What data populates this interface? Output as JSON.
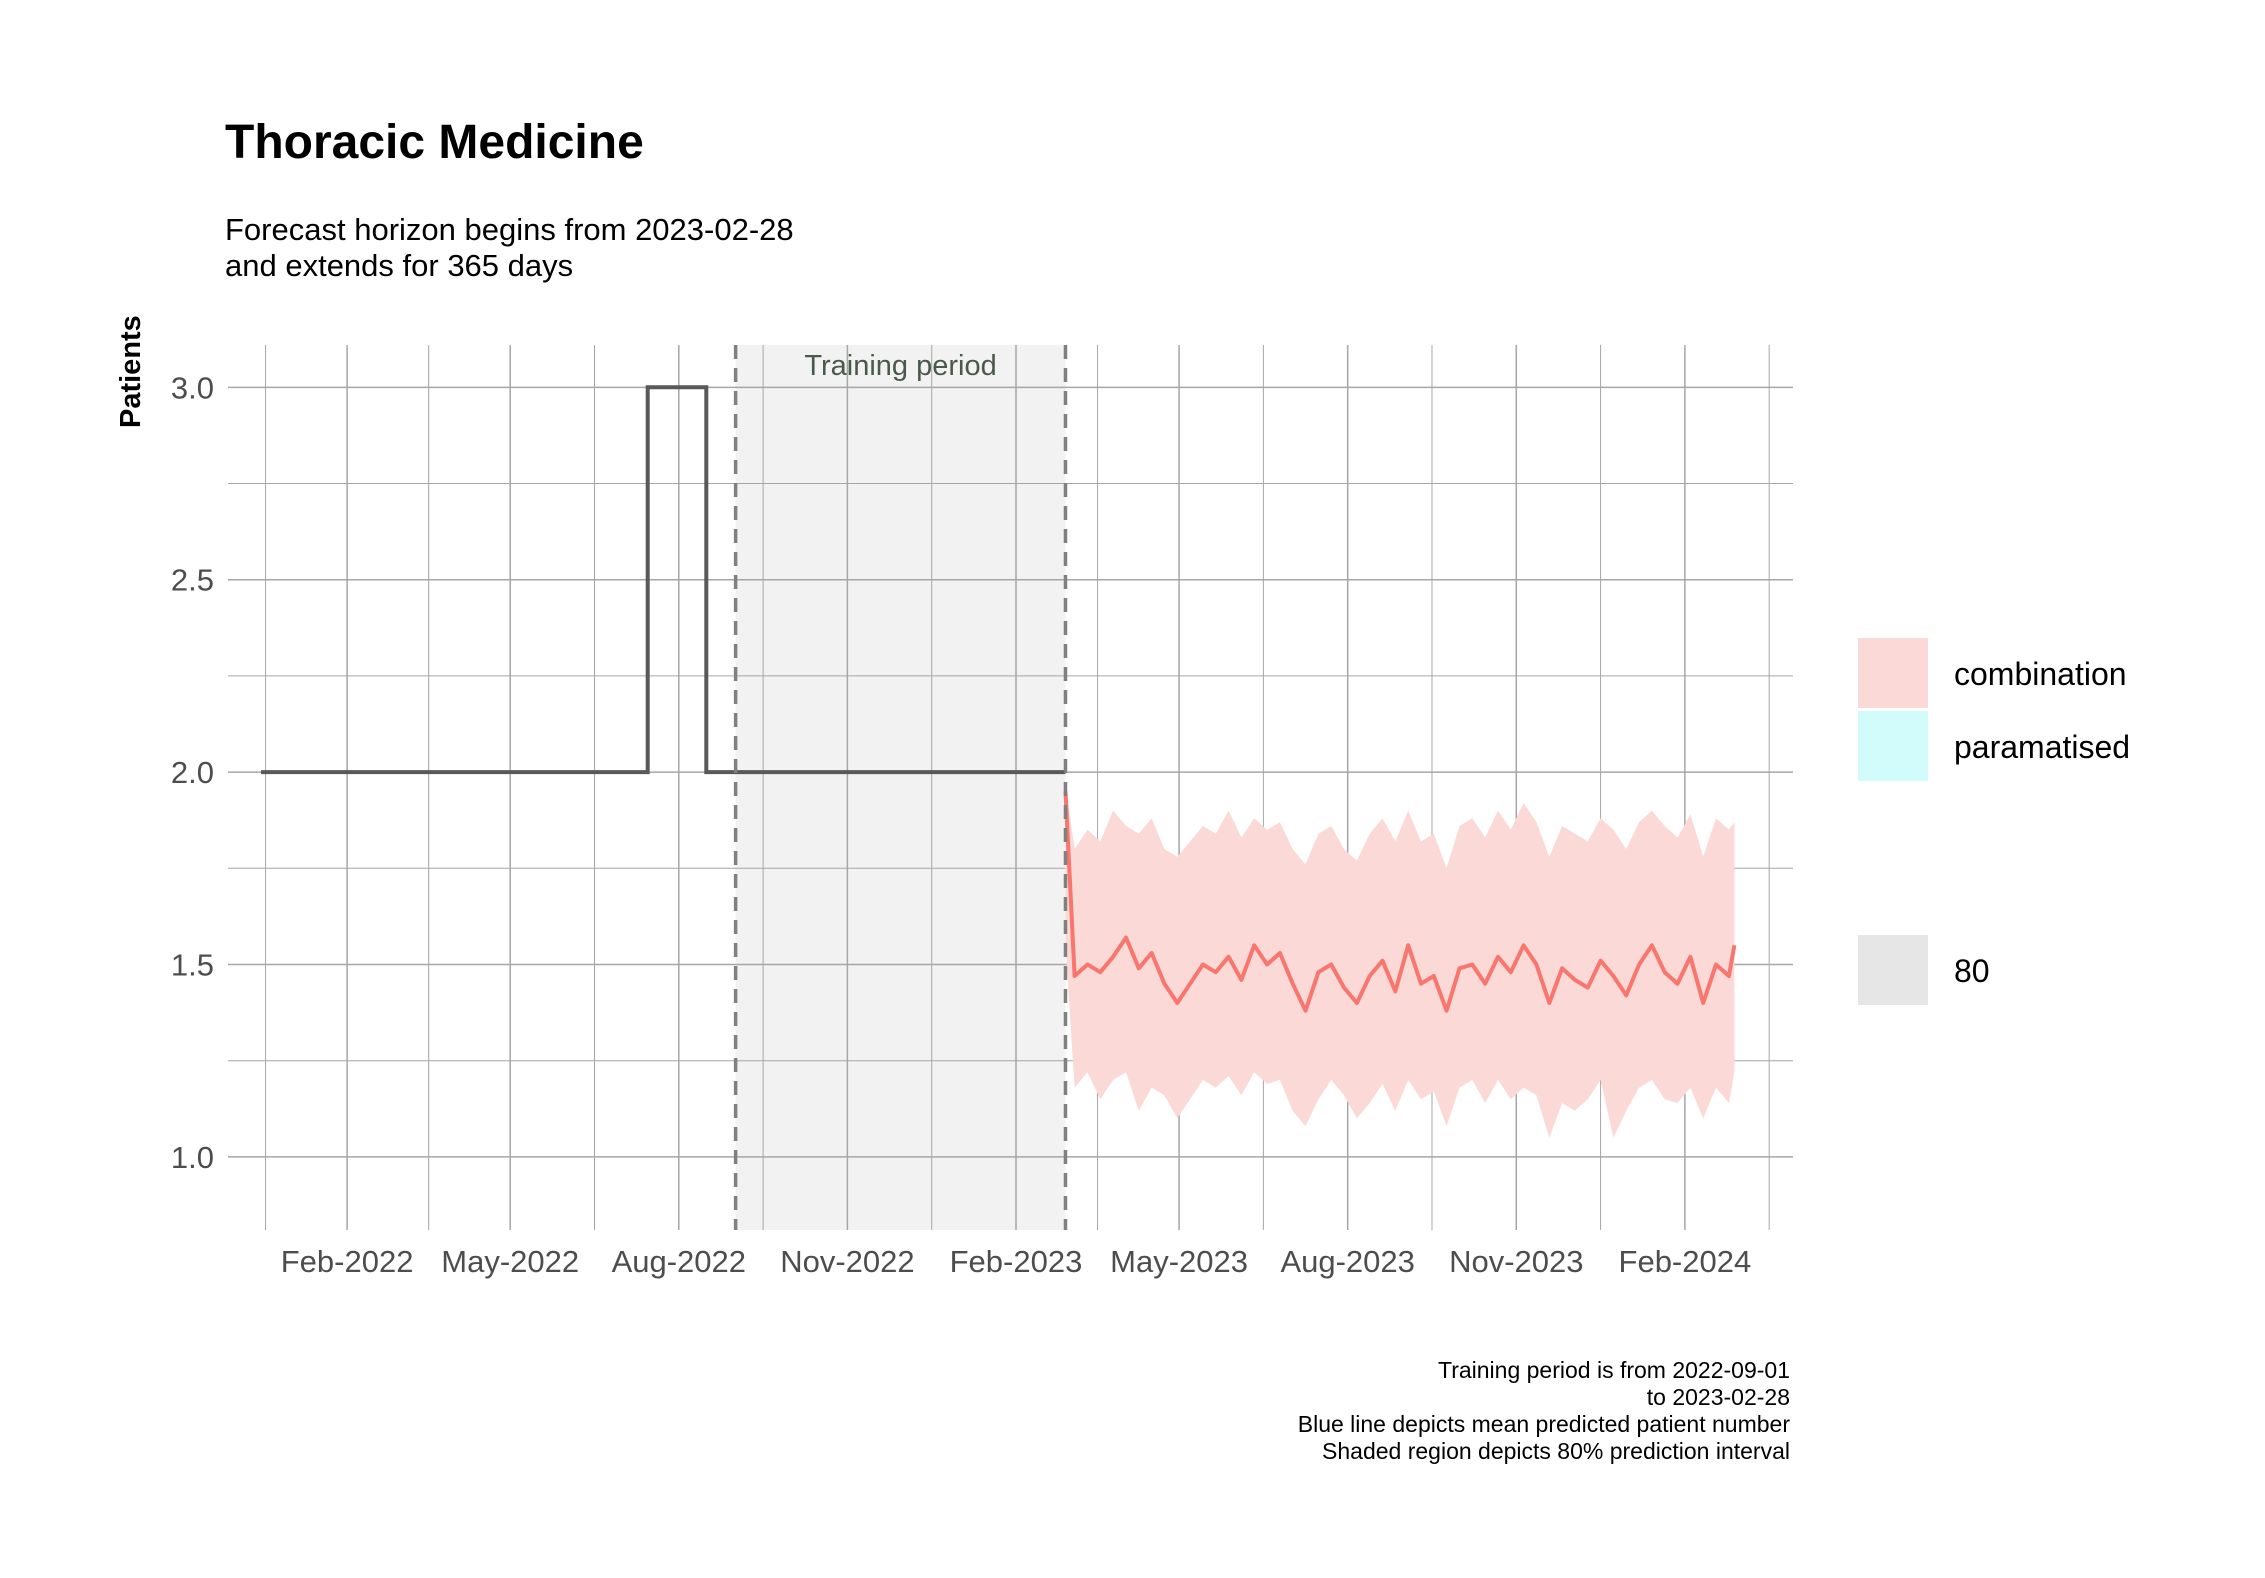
{
  "title": "Thoracic Medicine",
  "subtitle": [
    "Forecast horizon begins from 2023-02-28",
    "and extends for 365 days"
  ],
  "caption": [
    "Training period is from 2022-09-01",
    "to 2023-02-28",
    "Blue line depicts mean predicted patient number",
    "Shaded region depicts 80% prediction interval"
  ],
  "colors": {
    "history_line": "#595959",
    "forecast_line": "#f8766d",
    "forecast_band": "#fbd9d6",
    "training_shade": "#f2f2f2",
    "grid": "#a6a6a6",
    "paramatised": "#d2fbfb",
    "level_80": "#e6e6e6"
  },
  "legend": {
    "models": [
      {
        "label": "combination",
        "color": "#fbd9d6"
      },
      {
        "label": "paramatised",
        "color": "#d2fbfb"
      }
    ],
    "levels": [
      {
        "label": "80",
        "color": "#e6e6e6"
      }
    ]
  },
  "chart_data": {
    "type": "line",
    "title": "Thoracic Medicine",
    "xlabel": "",
    "ylabel": "Patients",
    "x_ticks": [
      "Feb-2022",
      "May-2022",
      "Aug-2022",
      "Nov-2022",
      "Feb-2023",
      "May-2023",
      "Aug-2023",
      "Nov-2023",
      "Feb-2024"
    ],
    "x_range": [
      "2021-11-28",
      "2024-03-31"
    ],
    "y_ticks": [
      1.0,
      1.5,
      2.0,
      2.5,
      3.0
    ],
    "ylim": [
      0.81,
      3.11
    ],
    "grid": true,
    "training_period": {
      "start": "2022-09-01",
      "end": "2023-02-28",
      "label": "Training period"
    },
    "history": [
      {
        "date": "2021-12-16",
        "value": 2
      },
      {
        "date": "2022-07-15",
        "value": 2
      },
      {
        "date": "2022-07-15",
        "value": 3
      },
      {
        "date": "2022-08-16",
        "value": 3
      },
      {
        "date": "2022-08-16",
        "value": 2
      },
      {
        "date": "2023-02-28",
        "value": 2
      }
    ],
    "forecast": {
      "model": "combination",
      "level": 80,
      "dates": [
        "2023-02-28",
        "2023-03-05",
        "2023-03-12",
        "2023-03-19",
        "2023-03-26",
        "2023-04-02",
        "2023-04-09",
        "2023-04-16",
        "2023-04-23",
        "2023-04-30",
        "2023-05-07",
        "2023-05-14",
        "2023-05-21",
        "2023-05-28",
        "2023-06-04",
        "2023-06-11",
        "2023-06-18",
        "2023-06-25",
        "2023-07-02",
        "2023-07-09",
        "2023-07-16",
        "2023-07-23",
        "2023-07-30",
        "2023-08-06",
        "2023-08-13",
        "2023-08-20",
        "2023-08-27",
        "2023-09-03",
        "2023-09-10",
        "2023-09-17",
        "2023-09-24",
        "2023-10-01",
        "2023-10-08",
        "2023-10-15",
        "2023-10-22",
        "2023-10-29",
        "2023-11-05",
        "2023-11-12",
        "2023-11-19",
        "2023-11-26",
        "2023-12-03",
        "2023-12-10",
        "2023-12-17",
        "2023-12-24",
        "2023-12-31",
        "2024-01-07",
        "2024-01-14",
        "2024-01-21",
        "2024-01-28",
        "2024-02-04",
        "2024-02-11",
        "2024-02-18",
        "2024-02-25",
        "2024-02-28"
      ],
      "mean": [
        1.95,
        1.47,
        1.5,
        1.48,
        1.52,
        1.57,
        1.49,
        1.53,
        1.45,
        1.4,
        1.45,
        1.5,
        1.48,
        1.52,
        1.46,
        1.55,
        1.5,
        1.53,
        1.45,
        1.38,
        1.48,
        1.5,
        1.44,
        1.4,
        1.47,
        1.51,
        1.43,
        1.55,
        1.45,
        1.47,
        1.38,
        1.49,
        1.5,
        1.45,
        1.52,
        1.48,
        1.55,
        1.5,
        1.4,
        1.49,
        1.46,
        1.44,
        1.51,
        1.47,
        1.42,
        1.5,
        1.55,
        1.48,
        1.45,
        1.52,
        1.4,
        1.5,
        1.47,
        1.55
      ],
      "lower": [
        1.55,
        1.18,
        1.22,
        1.15,
        1.2,
        1.22,
        1.12,
        1.18,
        1.16,
        1.1,
        1.15,
        1.2,
        1.18,
        1.21,
        1.16,
        1.22,
        1.19,
        1.2,
        1.12,
        1.08,
        1.15,
        1.2,
        1.16,
        1.1,
        1.14,
        1.19,
        1.12,
        1.2,
        1.15,
        1.17,
        1.08,
        1.18,
        1.2,
        1.14,
        1.2,
        1.15,
        1.18,
        1.16,
        1.05,
        1.14,
        1.12,
        1.15,
        1.2,
        1.05,
        1.12,
        1.18,
        1.2,
        1.15,
        1.14,
        1.18,
        1.1,
        1.18,
        1.14,
        1.22
      ],
      "upper": [
        1.97,
        1.8,
        1.85,
        1.82,
        1.9,
        1.86,
        1.84,
        1.88,
        1.8,
        1.78,
        1.82,
        1.86,
        1.84,
        1.9,
        1.83,
        1.88,
        1.85,
        1.87,
        1.8,
        1.76,
        1.84,
        1.86,
        1.8,
        1.77,
        1.84,
        1.88,
        1.82,
        1.9,
        1.82,
        1.84,
        1.75,
        1.86,
        1.88,
        1.83,
        1.9,
        1.85,
        1.92,
        1.87,
        1.78,
        1.86,
        1.84,
        1.82,
        1.88,
        1.85,
        1.8,
        1.87,
        1.9,
        1.86,
        1.83,
        1.89,
        1.78,
        1.88,
        1.85,
        1.87
      ]
    }
  }
}
